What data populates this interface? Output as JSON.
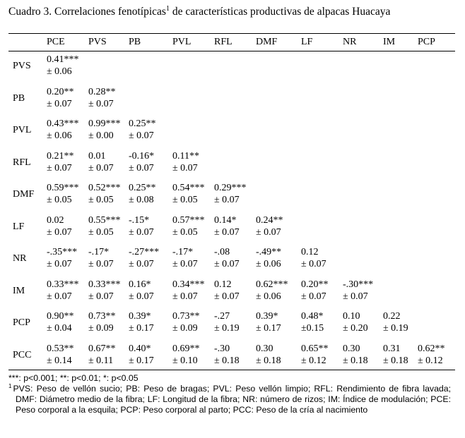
{
  "table": {
    "caption": "Cuadro 3. Correlaciones fenotípicas",
    "caption_mark": "1",
    "caption_rest": " de características productivas de alpacas Huacaya",
    "columns": [
      "PCE",
      "PVS",
      "PB",
      "PVL",
      "RFL",
      "DMF",
      "LF",
      "NR",
      "IM",
      "PCP"
    ],
    "rows": [
      {
        "label": "PVS",
        "cells": [
          [
            "0.41***",
            "± 0.06"
          ]
        ]
      },
      {
        "label": "PB",
        "cells": [
          [
            "0.20**",
            "± 0.07"
          ],
          [
            "0.28**",
            "± 0.07"
          ]
        ]
      },
      {
        "label": "PVL",
        "cells": [
          [
            "0.43***",
            "± 0.06"
          ],
          [
            "0.99***",
            "± 0.00"
          ],
          [
            "0.25**",
            "± 0.07"
          ]
        ]
      },
      {
        "label": "RFL",
        "cells": [
          [
            "0.21**",
            "± 0.07"
          ],
          [
            "0.01",
            "± 0.07"
          ],
          [
            "-0.16*",
            "± 0.07"
          ],
          [
            "0.11**",
            "± 0.07"
          ]
        ]
      },
      {
        "label": "DMF",
        "cells": [
          [
            "0.59***",
            "± 0.05"
          ],
          [
            "0.52***",
            "± 0.05"
          ],
          [
            "0.25**",
            "± 0.08"
          ],
          [
            "0.54***",
            "± 0.05"
          ],
          [
            "0.29***",
            "± 0.07"
          ]
        ]
      },
      {
        "label": "LF",
        "cells": [
          [
            "0.02",
            "± 0.07"
          ],
          [
            "0.55***",
            "± 0.05"
          ],
          [
            "-.15*",
            "± 0.07"
          ],
          [
            "0.57***",
            "± 0.05"
          ],
          [
            "0.14*",
            "± 0.07"
          ],
          [
            "0.24**",
            "± 0.07"
          ]
        ]
      },
      {
        "label": "NR",
        "cells": [
          [
            "-.35***",
            "± 0.07"
          ],
          [
            "-.17*",
            "± 0.07"
          ],
          [
            "-.27***",
            "± 0.07"
          ],
          [
            "-.17*",
            "± 0.07"
          ],
          [
            "-.08",
            "± 0.07"
          ],
          [
            "-.49**",
            "± 0.06"
          ],
          [
            "0.12",
            "± 0.07"
          ]
        ]
      },
      {
        "label": "IM",
        "cells": [
          [
            "0.33***",
            "± 0.07"
          ],
          [
            "0.33***",
            "± 0.07"
          ],
          [
            "0.16*",
            "± 0.07"
          ],
          [
            "0.34***",
            "± 0.07"
          ],
          [
            "0.12",
            "± 0.07"
          ],
          [
            "0.62***",
            "± 0.06"
          ],
          [
            "0.20**",
            "± 0.07"
          ],
          [
            "-.30***",
            "± 0.07"
          ]
        ]
      },
      {
        "label": "PCP",
        "cells": [
          [
            "0.90**",
            "± 0.04"
          ],
          [
            "0.73**",
            "± 0.09"
          ],
          [
            "0.39*",
            "± 0.17"
          ],
          [
            "0.73**",
            "± 0.09"
          ],
          [
            "-.27",
            "± 0.19"
          ],
          [
            "0.39*",
            "± 0.17"
          ],
          [
            "0.48*",
            "±0.15"
          ],
          [
            "0.10",
            "± 0.20"
          ],
          [
            "0.22",
            "± 0.19"
          ]
        ]
      },
      {
        "label": "PCC",
        "cells": [
          [
            "0.53**",
            "± 0.14"
          ],
          [
            "0.67**",
            "± 0.11"
          ],
          [
            "0.40*",
            "± 0.17"
          ],
          [
            "0.69**",
            "± 0.10"
          ],
          [
            "-.30",
            "± 0.18"
          ],
          [
            "0.30",
            "± 0.18"
          ],
          [
            "0.65**",
            "± 0.12"
          ],
          [
            "0.30",
            "± 0.18"
          ],
          [
            "0.31",
            "± 0.18"
          ],
          [
            "0.62**",
            "± 0.12"
          ]
        ]
      }
    ]
  },
  "notes": {
    "significance": "***: p<0.001; **: p<0.01; *: p<0.05",
    "abbrev_mark": "1",
    "abbreviations": "PVS: Peso de vellón sucio; PB: Peso de bragas; PVL: Peso vellón limpio; RFL: Rendimiento de fibra lavada; DMF: Diámetro medio de la fibra; LF: Longitud de la fibra; NR: número de rizos; IM: Índice de modulación; PCE: Peso corporal a la esquila; PCP: Peso corporal al parto; PCC: Peso de la cría al nacimiento"
  }
}
